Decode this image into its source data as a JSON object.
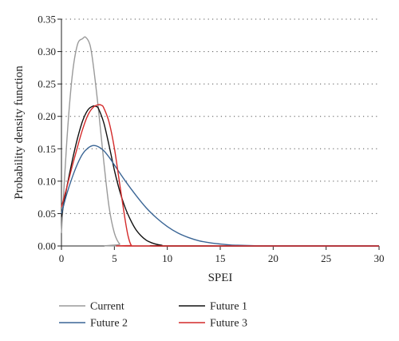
{
  "chart_data": {
    "type": "line",
    "title": "",
    "xlabel": "SPEI",
    "ylabel": "Probability density function",
    "xlim": [
      0,
      30
    ],
    "ylim": [
      0,
      0.35
    ],
    "x_ticks": [
      "0",
      "5",
      "10",
      "15",
      "20",
      "25",
      "30"
    ],
    "y_ticks": [
      "0.00",
      "0.05",
      "0.10",
      "0.15",
      "0.20",
      "0.25",
      "0.30",
      "0.35"
    ],
    "grid": "horizontal dotted",
    "legend_position": "bottom",
    "series": [
      {
        "name": "Current",
        "color": "#9a9a9a",
        "x": [
          0,
          0.5,
          1,
          1.5,
          2,
          2.3,
          2.7,
          3,
          3.5,
          4,
          4.5,
          5,
          5.5,
          6,
          30
        ],
        "y": [
          0.02,
          0.16,
          0.26,
          0.31,
          0.32,
          0.322,
          0.31,
          0.28,
          0.21,
          0.13,
          0.06,
          0.02,
          0.003,
          0,
          0
        ]
      },
      {
        "name": "Future 1",
        "color": "#111111",
        "x": [
          0,
          0.5,
          1,
          1.5,
          2,
          2.5,
          3,
          3.3,
          3.5,
          4,
          4.5,
          5,
          5.5,
          6,
          6.5,
          7,
          7.5,
          8,
          8.5,
          9,
          9.5,
          10,
          30
        ],
        "y": [
          0.045,
          0.09,
          0.13,
          0.165,
          0.193,
          0.21,
          0.216,
          0.215,
          0.212,
          0.19,
          0.155,
          0.117,
          0.085,
          0.06,
          0.041,
          0.026,
          0.016,
          0.009,
          0.005,
          0.0025,
          0.001,
          0,
          0
        ]
      },
      {
        "name": "Future 2",
        "color": "#3a6595",
        "x": [
          0,
          0.5,
          1,
          1.5,
          2,
          2.5,
          3,
          3.5,
          4,
          4.5,
          5,
          6,
          7,
          8,
          9,
          10,
          11,
          12,
          13,
          14,
          15,
          16,
          17,
          18,
          20,
          30
        ],
        "y": [
          0.05,
          0.08,
          0.105,
          0.126,
          0.142,
          0.151,
          0.155,
          0.153,
          0.147,
          0.137,
          0.125,
          0.101,
          0.079,
          0.059,
          0.043,
          0.03,
          0.02,
          0.013,
          0.008,
          0.005,
          0.003,
          0.0015,
          0.001,
          0.0005,
          0,
          0
        ]
      },
      {
        "name": "Future 3",
        "color": "#d42a2a",
        "x": [
          0,
          0.5,
          1,
          1.5,
          2,
          2.5,
          3,
          3.5,
          3.8,
          4,
          4.5,
          5,
          5.5,
          6,
          6.3,
          6.6,
          7,
          30
        ],
        "y": [
          0.06,
          0.09,
          0.122,
          0.152,
          0.18,
          0.202,
          0.214,
          0.218,
          0.217,
          0.213,
          0.191,
          0.151,
          0.096,
          0.042,
          0.015,
          0.001,
          0,
          0
        ]
      }
    ]
  }
}
